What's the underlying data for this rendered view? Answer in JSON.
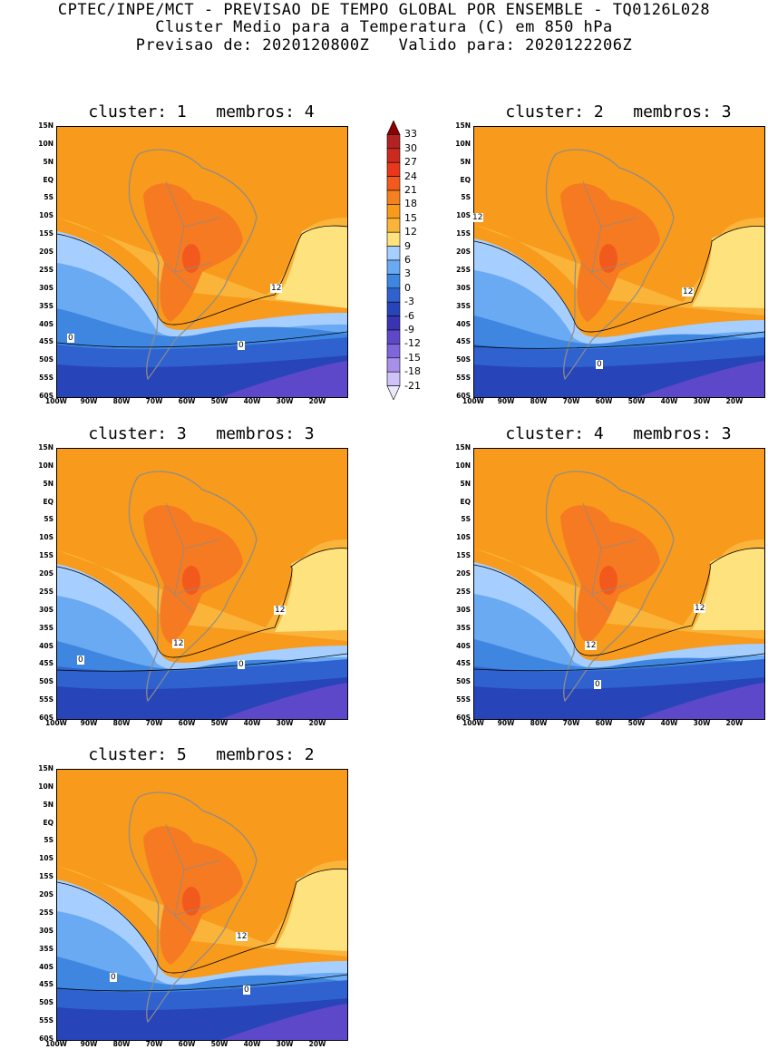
{
  "header": {
    "line1": "CPTEC/INPE/MCT - PREVISAO DE TEMPO GLOBAL POR ENSEMBLE - TQ0126L028",
    "line2": "Cluster Medio para a Temperatura (C) em 850 hPa",
    "line3": "Previsao de: 2020120800Z   Valido para: 2020122206Z"
  },
  "axes": {
    "lat_labels": [
      "15N",
      "10N",
      "5N",
      "EQ",
      "5S",
      "10S",
      "15S",
      "20S",
      "25S",
      "30S",
      "35S",
      "40S",
      "45S",
      "50S",
      "55S",
      "60S"
    ],
    "lon_labels": [
      "100W",
      "90W",
      "80W",
      "70W",
      "60W",
      "50W",
      "40W",
      "30W",
      "20W"
    ]
  },
  "colorbar": {
    "levels": [
      "33",
      "30",
      "27",
      "24",
      "21",
      "18",
      "15",
      "12",
      "9",
      "6",
      "3",
      "0",
      "-3",
      "-6",
      "-9",
      "-12",
      "-15",
      "-18",
      "-21"
    ],
    "colors": [
      "#8b0000",
      "#b22222",
      "#cc2a1e",
      "#e8371a",
      "#f25a1d",
      "#f5801f",
      "#f89a1b",
      "#fab43a",
      "#fde27e",
      "#a6ceff",
      "#6aaaf2",
      "#3f86e0",
      "#2f62cf",
      "#2744b8",
      "#3a34b5",
      "#5d48c9",
      "#8066dc",
      "#a890ea",
      "#cfc2f8",
      "#ece8fc"
    ]
  },
  "panels": [
    {
      "title": "cluster: 1   membros: 4",
      "tags": [
        {
          "t": "12"
        },
        {
          "t": "0"
        },
        {
          "t": "0"
        }
      ]
    },
    {
      "title": "cluster: 2   membros: 3",
      "tags": [
        {
          "t": "12"
        },
        {
          "t": "12"
        },
        {
          "t": "0"
        }
      ]
    },
    {
      "title": "cluster: 3   membros: 3",
      "tags": [
        {
          "t": "12"
        },
        {
          "t": "12"
        },
        {
          "t": "0"
        },
        {
          "t": "0"
        }
      ]
    },
    {
      "title": "cluster: 4   membros: 3",
      "tags": [
        {
          "t": "12"
        },
        {
          "t": "12"
        },
        {
          "t": "0"
        }
      ]
    },
    {
      "title": "cluster: 5   membros: 2",
      "tags": [
        {
          "t": "12"
        },
        {
          "t": "0"
        },
        {
          "t": "0"
        }
      ]
    }
  ]
}
